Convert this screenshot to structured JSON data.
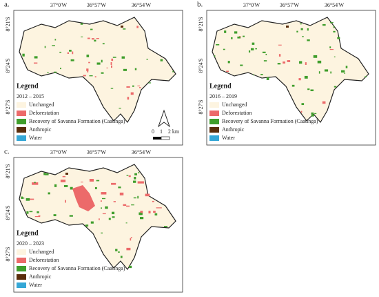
{
  "panels": [
    {
      "label": "a.",
      "period": "2012 – 2015",
      "x_labels": [
        "37°0'W",
        "36°57'W",
        "36°54'W"
      ],
      "y_labels": [
        "8°21'S",
        "8°24'S",
        "8°27'S"
      ]
    },
    {
      "label": "b.",
      "period": "2016 – 2019",
      "x_labels": [
        "37°0'W",
        "36°57'W",
        "36°54'W"
      ],
      "y_labels": [
        "8°21'S",
        "8°24'S",
        "8°27'S"
      ]
    },
    {
      "label": "c.",
      "period": "2020 – 2023",
      "x_labels": [
        "37°0'W",
        "36°57'W",
        "36°54'W"
      ],
      "y_labels": [
        "8°21'S",
        "8°24'S",
        "8°27'S"
      ]
    }
  ],
  "legend": {
    "title": "Legend",
    "items": [
      {
        "name": "Unchanged",
        "color": "#fdf4e0"
      },
      {
        "name": "Deforestation",
        "color": "#ec6a6a"
      },
      {
        "name": "Recovery of Savanna Formation (Caatinga)",
        "color": "#3f9e2c"
      },
      {
        "name": "Anthropic",
        "color": "#5a2d0c"
      },
      {
        "name": "Water",
        "color": "#35a7d6"
      }
    ]
  },
  "scale_bar": {
    "labels": [
      "0",
      "1",
      "2 km"
    ]
  }
}
